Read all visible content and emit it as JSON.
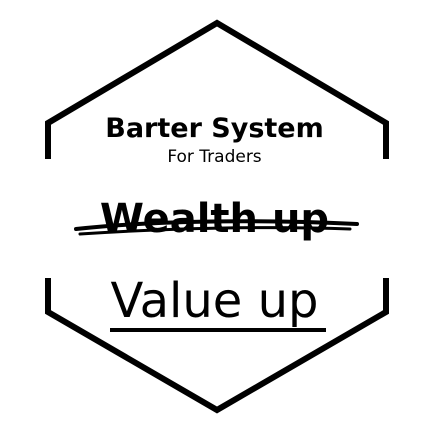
{
  "badge": {
    "title": "Barter System",
    "subtitle": "For Traders",
    "struck_text": "Wealth up",
    "main_text": "Value up"
  },
  "colors": {
    "ink": "#000000",
    "background": "#ffffff"
  }
}
